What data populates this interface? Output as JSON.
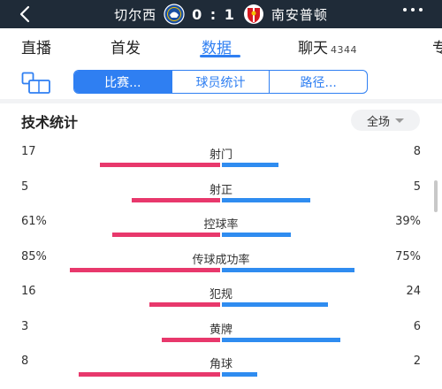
{
  "header": {
    "home_team": "切尔西",
    "score": "0 : 1",
    "away_team": "南安普顿",
    "home_color": "#1a4fa0",
    "away_color": "#d71920"
  },
  "tabs": [
    {
      "label": "直播"
    },
    {
      "label": "首发"
    },
    {
      "label": "数据"
    },
    {
      "label": "聊天",
      "count": "4344"
    },
    {
      "label": "专"
    }
  ],
  "subnav": {
    "segments": [
      "比赛...",
      "球员统计",
      "路径..."
    ]
  },
  "stats_section": {
    "title": "技术统计",
    "filter": "全场",
    "home_color": "#e8386c",
    "away_color": "#2f8cf0",
    "items": [
      {
        "name": "射门",
        "left": "17",
        "right": "8",
        "left_share": 0.68,
        "right_share": 0.32
      },
      {
        "name": "射正",
        "left": "5",
        "right": "5",
        "left_share": 0.5,
        "right_share": 0.5
      },
      {
        "name": "控球率",
        "left": "61%",
        "right": "39%",
        "left_share": 0.61,
        "right_share": 0.39
      },
      {
        "name": "传球成功率",
        "left": "85%",
        "right": "75%",
        "left_share": 0.85,
        "right_share": 0.75
      },
      {
        "name": "犯规",
        "left": "16",
        "right": "24",
        "left_share": 0.4,
        "right_share": 0.6
      },
      {
        "name": "黄牌",
        "left": "3",
        "right": "6",
        "left_share": 0.33,
        "right_share": 0.67
      },
      {
        "name": "角球",
        "left": "8",
        "right": "2",
        "left_share": 0.8,
        "right_share": 0.2
      }
    ]
  }
}
